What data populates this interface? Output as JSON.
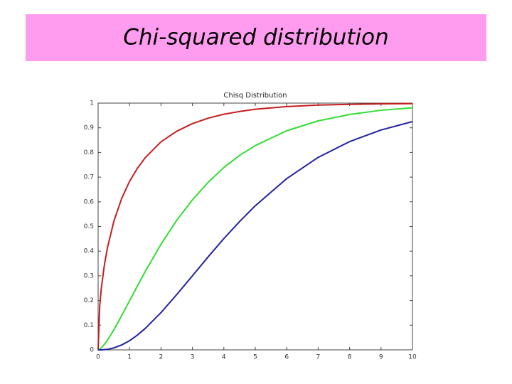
{
  "slide_title": "Chi-squared distribution",
  "chart_data": {
    "type": "line",
    "title": "Chisq Distribution",
    "x": [
      0,
      0.05,
      0.1,
      0.2,
      0.3,
      0.5,
      0.75,
      1,
      1.25,
      1.5,
      2,
      2.5,
      3,
      3.5,
      4,
      4.5,
      5,
      6,
      7,
      8,
      9,
      10
    ],
    "series": [
      {
        "color": "#c41e1e",
        "values": [
          0,
          0.177,
          0.248,
          0.345,
          0.416,
          0.521,
          0.614,
          0.683,
          0.736,
          0.779,
          0.843,
          0.886,
          0.917,
          0.939,
          0.955,
          0.966,
          0.975,
          0.986,
          0.992,
          0.995,
          0.997,
          0.998
        ]
      },
      {
        "color": "#33dd33",
        "values": [
          0,
          0.003,
          0.008,
          0.022,
          0.04,
          0.081,
          0.139,
          0.199,
          0.259,
          0.318,
          0.428,
          0.525,
          0.608,
          0.679,
          0.739,
          0.788,
          0.828,
          0.888,
          0.928,
          0.954,
          0.971,
          0.981
        ]
      },
      {
        "color": "#2222a0",
        "values": [
          0,
          0.0,
          0.0,
          0.001,
          0.002,
          0.008,
          0.02,
          0.037,
          0.06,
          0.087,
          0.151,
          0.224,
          0.3,
          0.377,
          0.451,
          0.52,
          0.584,
          0.694,
          0.78,
          0.844,
          0.891,
          0.925
        ]
      }
    ],
    "xlim": [
      0,
      10
    ],
    "xticks": [
      0,
      1,
      2,
      3,
      4,
      5,
      6,
      7,
      8,
      9,
      10
    ],
    "ylim": [
      0,
      1
    ],
    "yticks": [
      0,
      0.1,
      0.2,
      0.3,
      0.4,
      0.5,
      0.6,
      0.7,
      0.8,
      0.9,
      1
    ]
  }
}
